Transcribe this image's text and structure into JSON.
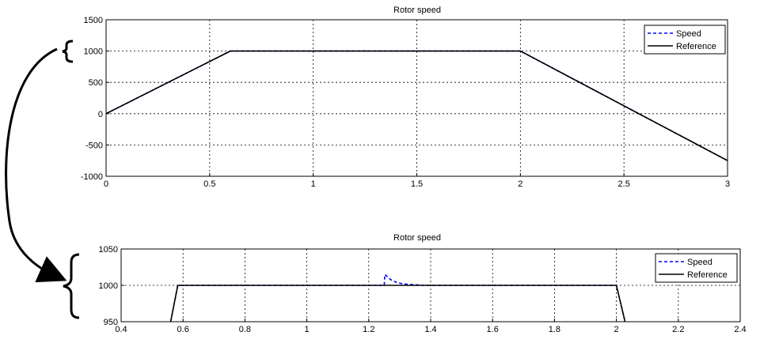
{
  "charts": [
    {
      "id": "top",
      "title": "Rotor speed",
      "xlim": [
        0,
        3
      ],
      "ylim": [
        -1000,
        1500
      ],
      "xticks": [
        0,
        0.5,
        1,
        1.5,
        2,
        2.5,
        3
      ],
      "yticks": [
        -1000,
        -500,
        0,
        500,
        1000,
        1500
      ],
      "xtick_labels": [
        "0",
        "0.5",
        "1",
        "1.5",
        "2",
        "2.5",
        "3"
      ],
      "ytick_labels": [
        "-1000",
        "-500",
        "0",
        "500",
        "1000",
        "1500"
      ],
      "legend": [
        "Speed",
        "Reference"
      ]
    },
    {
      "id": "bottom",
      "title": "Rotor speed",
      "xlim": [
        0.4,
        2.4
      ],
      "ylim": [
        950,
        1050
      ],
      "xticks": [
        0.4,
        0.6,
        0.8,
        1,
        1.2,
        1.4,
        1.6,
        1.8,
        2,
        2.2,
        2.4
      ],
      "yticks": [
        950,
        1000,
        1050
      ],
      "xtick_labels": [
        "0.4",
        "0.6",
        "0.8",
        "1",
        "1.2",
        "1.4",
        "1.6",
        "1.8",
        "2",
        "2.2",
        "2.4"
      ],
      "ytick_labels": [
        "950",
        "1000",
        "1050"
      ],
      "legend": [
        "Speed",
        "Reference"
      ]
    }
  ],
  "chart_data": [
    {
      "type": "line",
      "title": "Rotor speed",
      "xlabel": "",
      "ylabel": "",
      "xlim": [
        0,
        3
      ],
      "ylim": [
        -1000,
        1500
      ],
      "grid": true,
      "legend_position": "top-right",
      "series": [
        {
          "name": "Speed",
          "color": "#0000ff",
          "style": "dashed",
          "x": [
            0,
            0.6,
            1.25,
            1.251,
            1.26,
            2.0,
            3.0
          ],
          "y": [
            0,
            1000,
            1000,
            1015,
            1000,
            1000,
            -750
          ]
        },
        {
          "name": "Reference",
          "color": "#000000",
          "style": "solid",
          "x": [
            0,
            0.6,
            2.0,
            3.0
          ],
          "y": [
            0,
            1000,
            1000,
            -750
          ]
        }
      ]
    },
    {
      "type": "line",
      "title": "Rotor speed",
      "xlabel": "",
      "ylabel": "",
      "xlim": [
        0.4,
        2.4
      ],
      "ylim": [
        950,
        1050
      ],
      "grid": true,
      "legend_position": "top-right",
      "series": [
        {
          "name": "Speed",
          "color": "#0000ff",
          "style": "dashed",
          "x": [
            0.56,
            0.583,
            0.6,
            1.25,
            1.252,
            1.27,
            1.29,
            1.31,
            1.34,
            1.38,
            1.45,
            2.0,
            2.028
          ],
          "y": [
            950,
            1000,
            1000,
            1000,
            1015,
            1008,
            1004,
            1002,
            1001,
            1000,
            1000,
            1000,
            950
          ]
        },
        {
          "name": "Reference",
          "color": "#000000",
          "style": "solid",
          "x": [
            0.56,
            0.583,
            2.0,
            2.028
          ],
          "y": [
            950,
            1000,
            1000,
            950
          ]
        }
      ]
    }
  ],
  "colors": {
    "speed": "#0000ff",
    "reference": "#000000",
    "grid": "#000000",
    "axes": "#000000"
  }
}
